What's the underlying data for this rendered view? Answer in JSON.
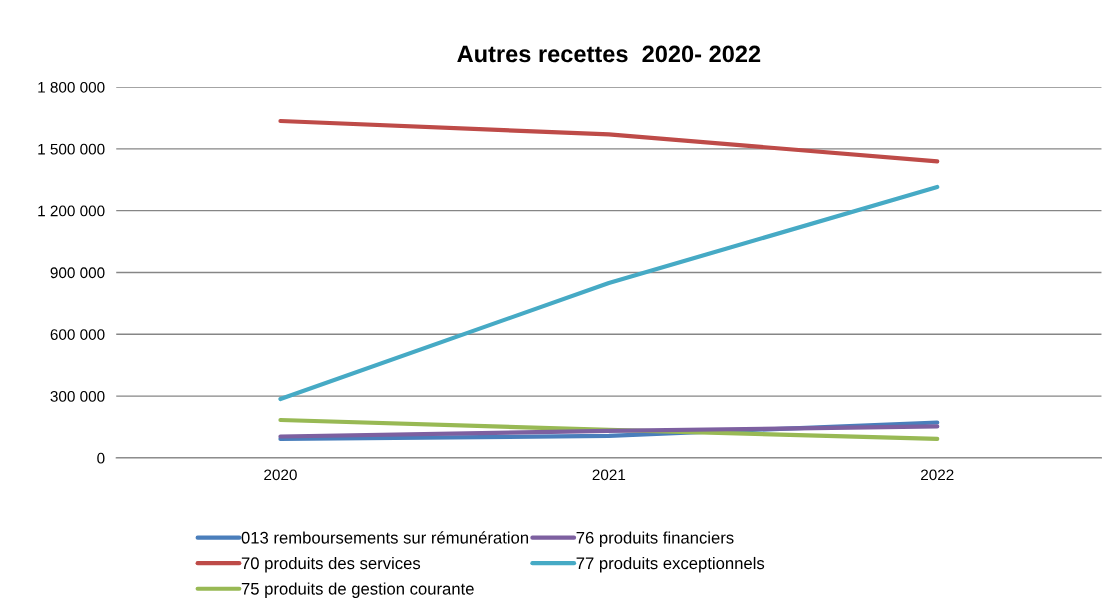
{
  "chart_data": {
    "type": "line",
    "title": "Autres recettes  2020- 2022",
    "categories": [
      "2020",
      "2021",
      "2022"
    ],
    "series": [
      {
        "name": "013 remboursements sur rémunération",
        "color": "#4a7ebb",
        "values": [
          92000,
          107000,
          172000
        ]
      },
      {
        "name": "70 produits des services",
        "color": "#be4b48",
        "values": [
          1635000,
          1570000,
          1439000
        ]
      },
      {
        "name": "75 produits de gestion courante",
        "color": "#98b954",
        "values": [
          184000,
          136000,
          92000
        ]
      },
      {
        "name": "76 produits financiers",
        "color": "#7d60a0",
        "values": [
          104000,
          131000,
          153000
        ]
      },
      {
        "name": "77 produits exceptionnels",
        "color": "#46aac5",
        "values": [
          286000,
          849000,
          1315000
        ]
      }
    ],
    "ylim": [
      0,
      1800000
    ],
    "yticks": [
      {
        "value": 0,
        "label": "0"
      },
      {
        "value": 300000,
        "label": "300 000"
      },
      {
        "value": 600000,
        "label": "600 000"
      },
      {
        "value": 900000,
        "label": "900 000"
      },
      {
        "value": 1200000,
        "label": "1 200 000"
      },
      {
        "value": 1500000,
        "label": "1 500 000"
      },
      {
        "value": 1800000,
        "label": "1 800 000"
      }
    ],
    "grid": "y",
    "legend": "bottom",
    "marker": "none",
    "line_style": "solid"
  }
}
